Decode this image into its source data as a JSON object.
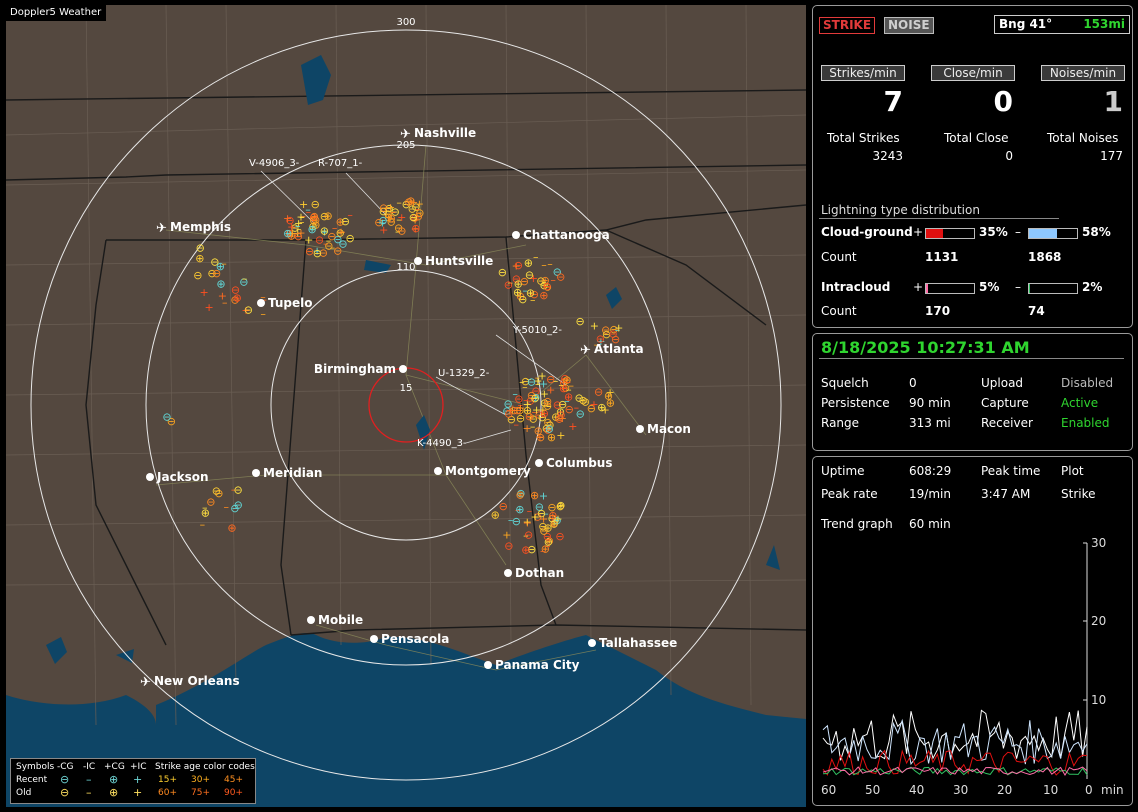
{
  "map": {
    "title": "Doppler5 Weather",
    "range_labels": [
      "300",
      "205",
      "110",
      "15"
    ],
    "cities": [
      {
        "name": "Nashville",
        "airport": true
      },
      {
        "name": "Memphis",
        "airport": true
      },
      {
        "name": "Chattanooga",
        "airport": false
      },
      {
        "name": "Huntsville",
        "airport": false
      },
      {
        "name": "Tupelo",
        "airport": false
      },
      {
        "name": "Atlanta",
        "airport": true
      },
      {
        "name": "Birmingham",
        "airport": false
      },
      {
        "name": "Macon",
        "airport": false
      },
      {
        "name": "Jackson",
        "airport": false
      },
      {
        "name": "Meridian",
        "airport": false
      },
      {
        "name": "Montgomery",
        "airport": false
      },
      {
        "name": "Columbus",
        "airport": false
      },
      {
        "name": "Dothan",
        "airport": false
      },
      {
        "name": "Mobile",
        "airport": false
      },
      {
        "name": "Pensacola",
        "airport": false
      },
      {
        "name": "Tallahassee",
        "airport": false
      },
      {
        "name": "Panama City",
        "airport": false
      },
      {
        "name": "New Orleans",
        "airport": true
      }
    ],
    "tracks": [
      "V-4906_3-",
      "R-707_1-",
      "Y-5010_2-",
      "U-1329_2-",
      "K-4490_3-"
    ]
  },
  "legend": {
    "symbols_label": "Symbols",
    "headers": [
      "-CG",
      "-IC",
      "+CG",
      "+IC"
    ],
    "recent_label": "Recent",
    "old_label": "Old",
    "age_title": "Strike age color codes",
    "recent_ages": [
      "15+",
      "30+",
      "45+"
    ],
    "old_ages": [
      "60+",
      "75+",
      "90+"
    ]
  },
  "mode": {
    "strike_label": "STRIKE",
    "noise_label": "NOISE"
  },
  "bearing": {
    "label": "Bng 41°",
    "distance": "153mi"
  },
  "rates": [
    {
      "label": "Strikes/min",
      "value": "7",
      "total_label": "Total Strikes",
      "total": "3243"
    },
    {
      "label": "Close/min",
      "value": "0",
      "total_label": "Total Close",
      "total": "0"
    },
    {
      "label": "Noises/min",
      "value": "1",
      "total_label": "Total Noises",
      "total": "177"
    }
  ],
  "distribution": {
    "title": "Lightning type distribution",
    "count_label": "Count",
    "cloud_ground": {
      "label": "Cloud-ground",
      "pos_pct": "35%",
      "neg_pct": "58%",
      "pos_fill": 0.35,
      "neg_fill": 0.58,
      "pos_count": "1131",
      "neg_count": "1868"
    },
    "intracloud": {
      "label": "Intracloud",
      "pos_pct": "5%",
      "neg_pct": "2%",
      "pos_fill": 0.05,
      "neg_fill": 0.02,
      "pos_count": "170",
      "neg_count": "74"
    },
    "plus": "+",
    "minus": "–"
  },
  "status": {
    "datetime": "8/18/2025 10:27:31 AM",
    "rows": [
      {
        "label": "Squelch",
        "value": "0",
        "label2": "Upload",
        "value2": "Disabled"
      },
      {
        "label": "Persistence",
        "value": "90 min",
        "label2": "Capture",
        "value2": "Active"
      },
      {
        "label": "Range",
        "value": "313 mi",
        "label2": "Receiver",
        "value2": "Enabled"
      }
    ]
  },
  "uptime": {
    "uptime_label": "Uptime",
    "uptime_value": "608:29",
    "peak_time_label": "Peak time",
    "plot_label": "Plot",
    "peak_rate_label": "Peak rate",
    "peak_rate_value": "19/min",
    "peak_time_value": "3:47 AM",
    "plot_value": "Strike",
    "trend_label": "Trend graph",
    "trend_value": "60 min"
  },
  "trend_chart": {
    "y_ticks": [
      "30",
      "20",
      "10"
    ],
    "x_ticks": [
      "60",
      "50",
      "40",
      "30",
      "20",
      "10",
      "0"
    ],
    "x_unit": "min"
  },
  "colors": {
    "map_land": "#54483f",
    "water": "#0e4566",
    "accent_green": "#2fd52f",
    "cg_pos": "#e01010",
    "cg_neg": "#8ec8ff",
    "ic_pos": "#ff6fa8",
    "ic_neg": "#30c060"
  }
}
